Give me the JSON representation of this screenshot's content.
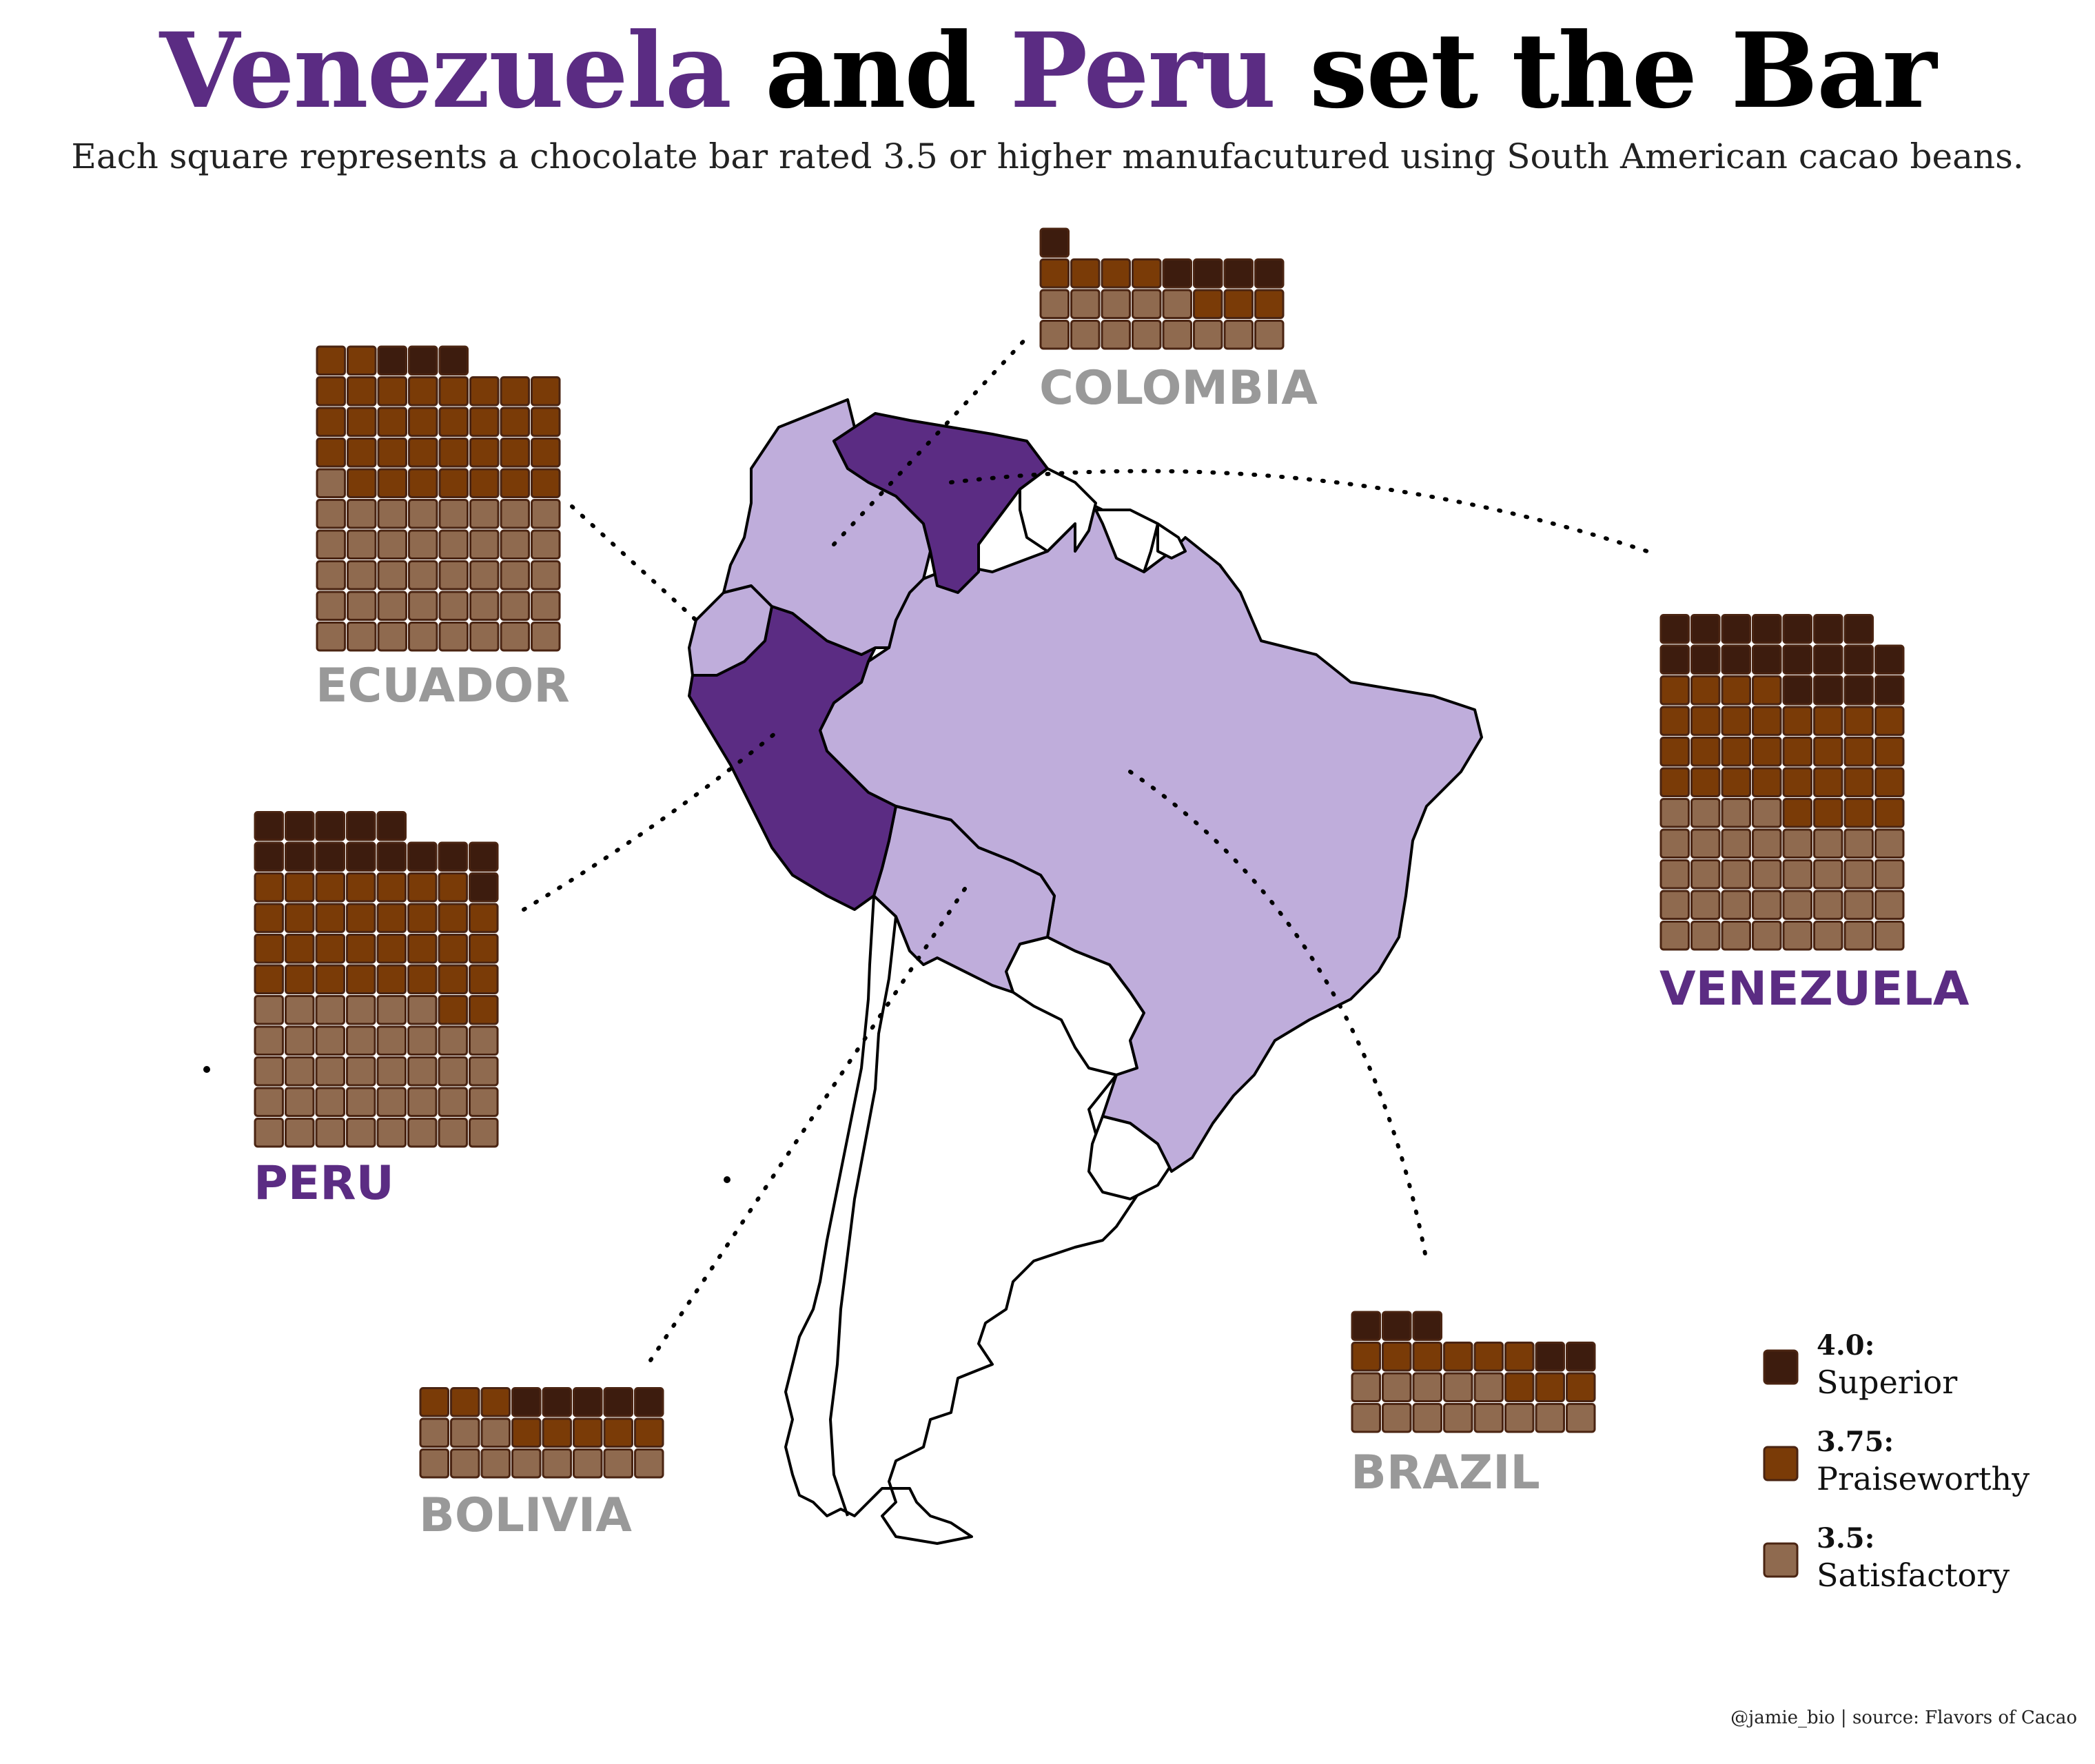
{
  "title": {
    "part1": "Venezuela",
    "part2": " and ",
    "part3": "Peru",
    "part4": " set the Bar"
  },
  "subtitle": "Each square represents a chocolate bar rated 3.5 or higher manufacutured using South American cacao beans.",
  "caption": "@jamie_bio | source: Flavors of Cacao",
  "colors": {
    "highlight": "#5b2c83",
    "map_highlight": "#5b2c83",
    "map_other": "#bfaddb",
    "label_grey": "#999999",
    "superior": "#3d1c0e",
    "praiseworthy": "#7a3b07",
    "satisfactory": "#8f6a4f",
    "cell_stroke": "#4a2412"
  },
  "legend": [
    {
      "key": "4.0:",
      "name": "Superior",
      "color": "#3d1c0e"
    },
    {
      "key": "3.75:",
      "name": "Praiseworthy",
      "color": "#7a3b07"
    },
    {
      "key": "3.5:",
      "name": "Satisfactory",
      "color": "#8f6a4f"
    }
  ],
  "chart_data": {
    "type": "waffle",
    "unit": "one chocolate bar rated 3.5 or higher",
    "columns": 8,
    "series": [
      {
        "country": "Venezuela",
        "highlight": true,
        "superior": 19,
        "praiseworthy": 32,
        "satisfactory": 36
      },
      {
        "country": "Peru",
        "highlight": true,
        "superior": 14,
        "praiseworthy": 33,
        "satisfactory": 38
      },
      {
        "country": "Ecuador",
        "highlight": false,
        "superior": 3,
        "praiseworthy": 33,
        "satisfactory": 41
      },
      {
        "country": "Colombia",
        "highlight": false,
        "superior": 5,
        "praiseworthy": 7,
        "satisfactory": 13
      },
      {
        "country": "Brazil",
        "highlight": false,
        "superior": 5,
        "praiseworthy": 9,
        "satisfactory": 13
      },
      {
        "country": "Bolivia",
        "highlight": false,
        "superior": 5,
        "praiseworthy": 8,
        "satisfactory": 11
      }
    ],
    "labels": [
      "COLOMBIA",
      "ECUADOR",
      "PERU",
      "VENEZUELA",
      "BRAZIL",
      "BOLIVIA"
    ]
  }
}
